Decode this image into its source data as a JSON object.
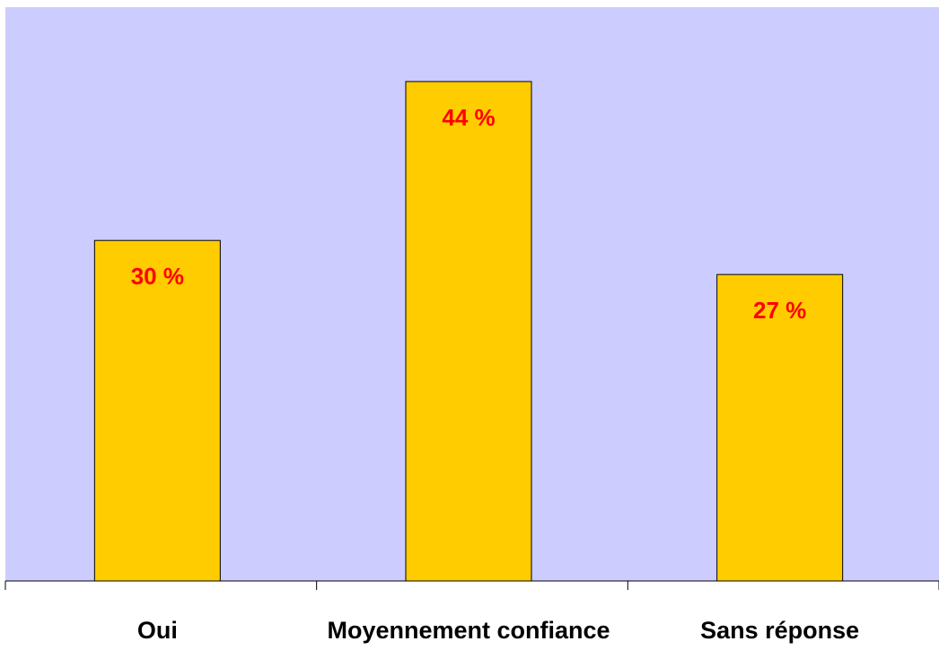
{
  "chart_data": {
    "type": "bar",
    "categories": [
      "Oui",
      "Moyennement confiance",
      "Sans réponse"
    ],
    "values": [
      30,
      44,
      27
    ],
    "value_labels": [
      "30 %",
      "44 %",
      "27 %"
    ],
    "color": "#ffcc00",
    "ylim": [
      0,
      50
    ]
  }
}
